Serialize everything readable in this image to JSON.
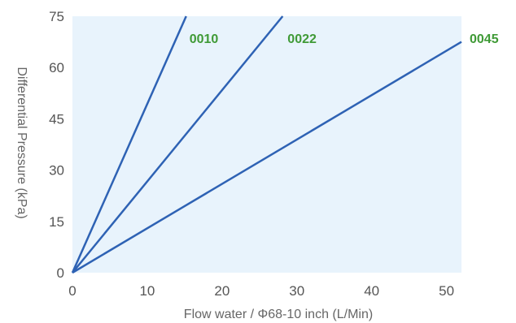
{
  "chart_data": {
    "type": "line",
    "xlabel": "Flow water / Φ68-10 inch (L/Min)",
    "ylabel": "Differential Pressure (kPa)",
    "xlim": [
      0,
      52
    ],
    "ylim": [
      0,
      75
    ],
    "xticks": [
      "0",
      "10",
      "20",
      "30",
      "40",
      "50"
    ],
    "yticks": [
      "0",
      "15",
      "30",
      "45",
      "60",
      "75"
    ],
    "grid": false,
    "colors": {
      "plot_background": "#e8f3fc",
      "line": "#2e62b4",
      "series_label": "#3f9a36",
      "tick_text": "#555555"
    },
    "series": [
      {
        "name": "0010",
        "x": [
          0,
          15.2
        ],
        "y": [
          0,
          75
        ]
      },
      {
        "name": "0022",
        "x": [
          0,
          28.1
        ],
        "y": [
          0,
          75
        ]
      },
      {
        "name": "0045",
        "x": [
          0,
          52
        ],
        "y": [
          0,
          67.5
        ]
      }
    ]
  }
}
